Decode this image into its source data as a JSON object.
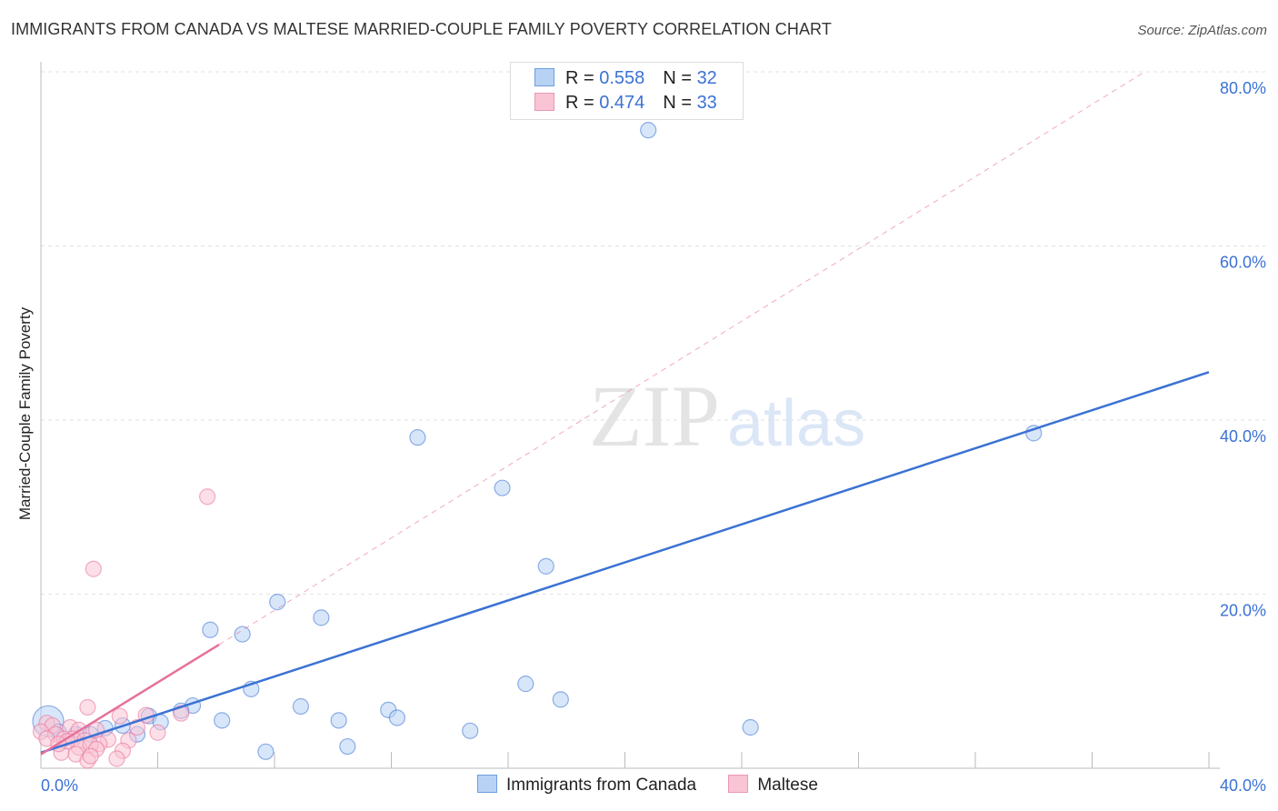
{
  "title": "IMMIGRANTS FROM CANADA VS MALTESE MARRIED-COUPLE FAMILY POVERTY CORRELATION CHART",
  "source": "Source: ZipAtlas.com",
  "watermark": "ZIPatlas",
  "legend": {
    "rows": [
      {
        "r_label": "R = ",
        "r": "0.558",
        "n_label": "N = ",
        "n": "32"
      },
      {
        "r_label": "R = ",
        "r": "0.474",
        "n_label": "N = ",
        "n": "33"
      }
    ]
  },
  "chart_data": {
    "type": "scatter",
    "title": "IMMIGRANTS FROM CANADA VS MALTESE MARRIED-COUPLE FAMILY POVERTY CORRELATION CHART",
    "xlabel": "",
    "ylabel": "Married-Couple Family Poverty",
    "xlim": [
      0,
      40
    ],
    "ylim": [
      0,
      80
    ],
    "x_tick_labels": [
      "0.0%",
      "40.0%"
    ],
    "y_ticks": [
      20,
      40,
      60,
      80
    ],
    "y_tick_labels": [
      "20.0%",
      "40.0%",
      "60.0%",
      "80.0%"
    ],
    "grid": true,
    "legend_placement": "bottom",
    "series": [
      {
        "name": "Immigrants from Canada",
        "color": "#3b72d4",
        "fill": "#b8d2f5",
        "r": 0.558,
        "n": 32,
        "trend": {
          "x": [
            0,
            40
          ],
          "y": [
            1.8,
            45.5
          ],
          "style": "solid"
        },
        "points": [
          [
            20.8,
            73.3
          ],
          [
            12.9,
            38.0
          ],
          [
            34.0,
            38.5
          ],
          [
            15.8,
            32.2
          ],
          [
            17.3,
            23.2
          ],
          [
            8.1,
            19.1
          ],
          [
            9.6,
            17.3
          ],
          [
            5.8,
            15.9
          ],
          [
            6.9,
            15.4
          ],
          [
            16.6,
            9.7
          ],
          [
            7.2,
            9.1
          ],
          [
            17.8,
            7.9
          ],
          [
            5.2,
            7.2
          ],
          [
            8.9,
            7.1
          ],
          [
            11.9,
            6.7
          ],
          [
            3.7,
            6.0
          ],
          [
            4.8,
            6.6
          ],
          [
            6.2,
            5.5
          ],
          [
            10.2,
            5.5
          ],
          [
            12.2,
            5.8
          ],
          [
            4.1,
            5.3
          ],
          [
            2.8,
            4.9
          ],
          [
            2.2,
            4.6
          ],
          [
            24.3,
            4.7
          ],
          [
            14.7,
            4.3
          ],
          [
            3.3,
            3.9
          ],
          [
            1.7,
            3.9
          ],
          [
            10.5,
            2.5
          ],
          [
            7.7,
            1.9
          ],
          [
            0.25,
            5.4
          ],
          [
            1.2,
            3.9
          ],
          [
            0.6,
            4.2
          ]
        ]
      },
      {
        "name": "Maltese",
        "color": "#e8709a",
        "fill": "#f9c4d4",
        "r": 0.474,
        "n": 33,
        "trend": {
          "x": [
            0,
            6.1
          ],
          "y": [
            1.6,
            14.2
          ],
          "style": "solid",
          "extended": {
            "x": [
              6.1,
              37.8
            ],
            "y": [
              14.2,
              80
            ],
            "style": "dashed"
          }
        },
        "points": [
          [
            5.7,
            31.2
          ],
          [
            1.8,
            22.9
          ],
          [
            1.6,
            7.0
          ],
          [
            4.8,
            6.3
          ],
          [
            2.7,
            6.0
          ],
          [
            3.6,
            6.1
          ],
          [
            0.2,
            5.2
          ],
          [
            0.4,
            4.9
          ],
          [
            1.0,
            4.7
          ],
          [
            1.3,
            4.4
          ],
          [
            1.9,
            4.4
          ],
          [
            4.0,
            4.1
          ],
          [
            0,
            4.2
          ],
          [
            0.5,
            3.9
          ],
          [
            0.8,
            3.4
          ],
          [
            1.1,
            3.4
          ],
          [
            1.5,
            3.2
          ],
          [
            0.2,
            3.4
          ],
          [
            2.3,
            3.3
          ],
          [
            3.0,
            3.2
          ],
          [
            2.0,
            2.8
          ],
          [
            1.3,
            2.4
          ],
          [
            1.7,
            2.7
          ],
          [
            0.7,
            1.8
          ],
          [
            1.9,
            2.2
          ],
          [
            2.8,
            2.0
          ],
          [
            1.2,
            1.6
          ],
          [
            2.6,
            1.1
          ],
          [
            1.6,
            0.9
          ],
          [
            1.7,
            1.4
          ],
          [
            0.9,
            3.1
          ],
          [
            3.3,
            4.7
          ],
          [
            0.6,
            2.8
          ]
        ]
      }
    ]
  }
}
